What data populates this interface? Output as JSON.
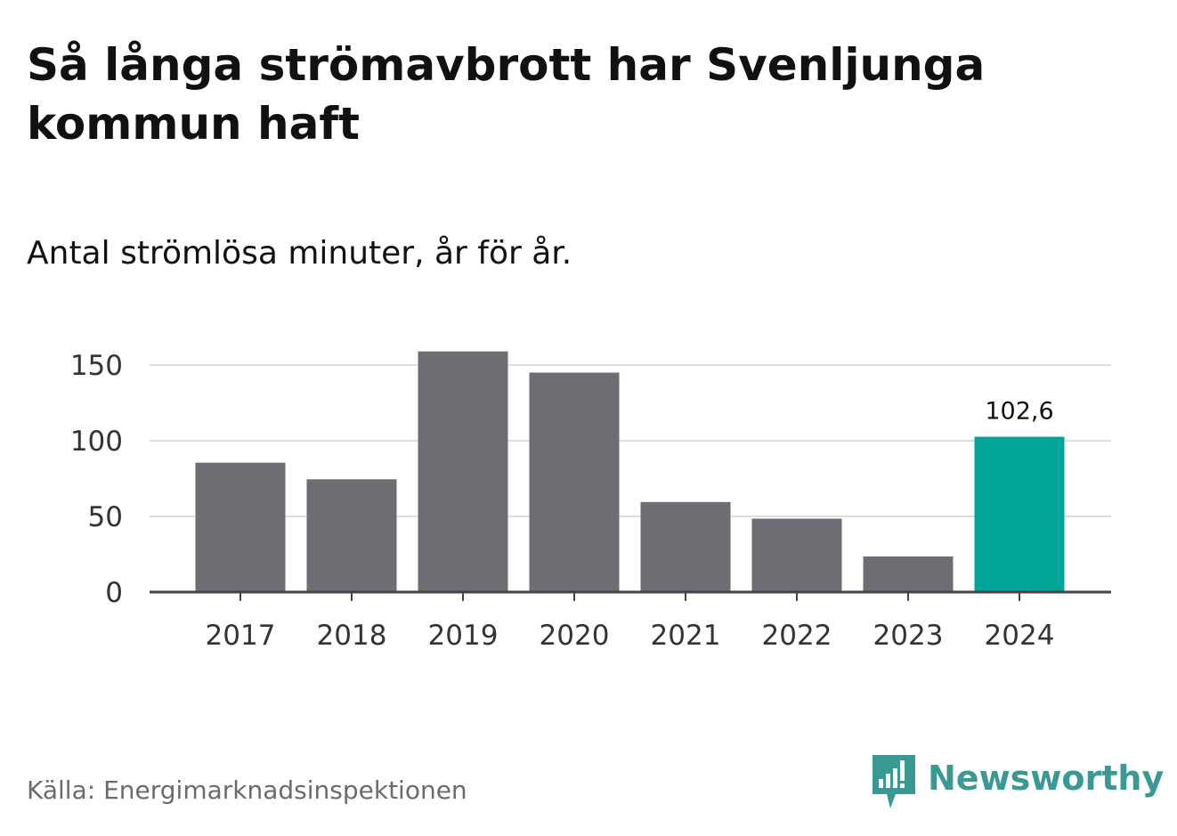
{
  "title": "Så långa strömavbrott har Svenljunga kommun haft",
  "subtitle": "Antal strömlösa minuter, år för år.",
  "source": "Källa: Energimarknadsinspektionen",
  "brand": {
    "name": "Newsworthy",
    "icon": "newsworthy-logo-icon",
    "color": "#3a9a93"
  },
  "colors": {
    "bar": "#6e6d73",
    "highlight": "#00a499",
    "grid": "#dddddd",
    "axis": "#444444"
  },
  "chart_data": {
    "type": "bar",
    "title": "Så långa strömavbrott har Svenljunga kommun haft",
    "subtitle": "Antal strömlösa minuter, år för år.",
    "xlabel": "",
    "ylabel": "",
    "categories": [
      "2017",
      "2018",
      "2019",
      "2020",
      "2021",
      "2022",
      "2023",
      "2024"
    ],
    "values": [
      85.5,
      74.5,
      159,
      145,
      59.5,
      48.5,
      23.5,
      102.6
    ],
    "highlight_index": 7,
    "annotations": [
      {
        "index": 7,
        "label": "102,6"
      }
    ],
    "ylim": [
      0,
      150
    ],
    "yticks": [
      0,
      50,
      100,
      150
    ],
    "ytick_labels": [
      "0",
      "50",
      "100",
      "150"
    ],
    "grid": true,
    "legend": "none"
  }
}
